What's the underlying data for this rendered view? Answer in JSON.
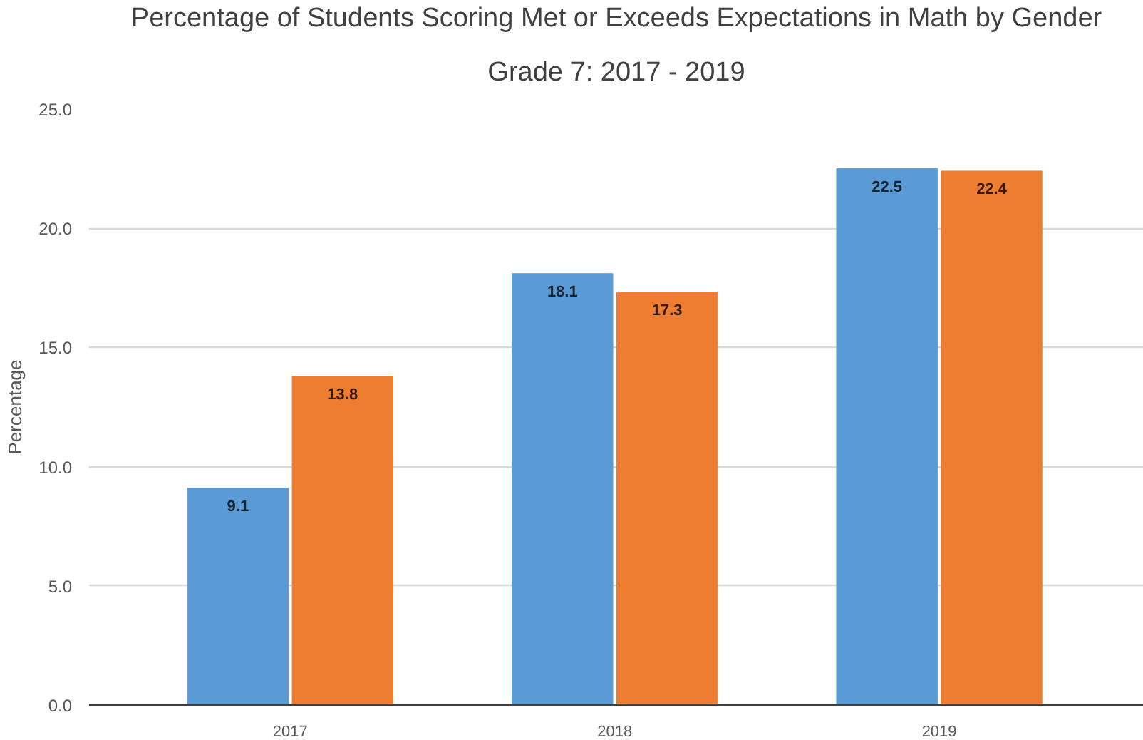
{
  "chart_data": {
    "type": "bar",
    "title": "Percentage of Students Scoring Met or Exceeds Expectations in Math by Gender",
    "subtitle": "Grade 7: 2017 - 2019",
    "ylabel": "Percentage",
    "categories": [
      "2017",
      "2018",
      "2019"
    ],
    "series": [
      {
        "color": "#5b9bd5",
        "values": [
          9.1,
          18.1,
          22.5
        ]
      },
      {
        "color": "#ed7d31",
        "values": [
          13.8,
          17.3,
          22.4
        ]
      }
    ],
    "ylim": [
      0,
      25
    ],
    "yticks": [
      {
        "value": 0,
        "label": "0.0"
      },
      {
        "value": 5,
        "label": "5.0"
      },
      {
        "value": 10,
        "label": "10.0"
      },
      {
        "value": 15,
        "label": "15.0"
      },
      {
        "value": 20,
        "label": "20.0"
      },
      {
        "value": 25,
        "label": "25.0"
      }
    ],
    "grid": "y",
    "data_labels": true
  }
}
